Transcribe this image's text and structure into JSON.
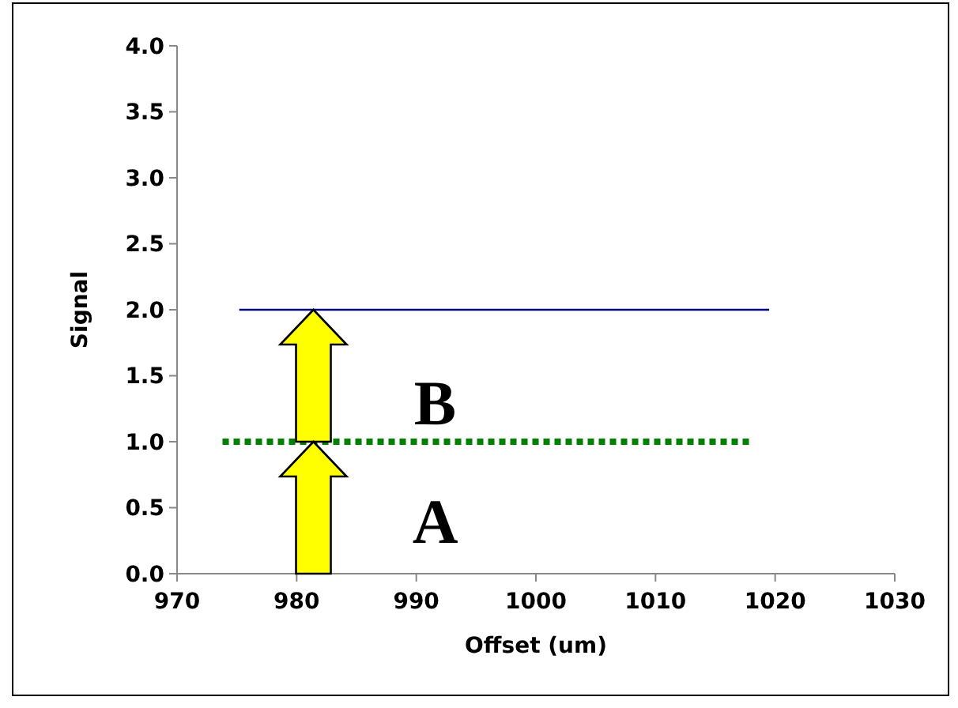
{
  "chart_data": {
    "type": "line",
    "xlabel": "Offset (um)",
    "ylabel": "Signal",
    "xlim": [
      970,
      1030
    ],
    "xticks": [
      970,
      980,
      990,
      1000,
      1010,
      1020,
      1030
    ],
    "ylim": [
      0,
      4
    ],
    "yticks": [
      {
        "value": 0,
        "label": "0.0"
      },
      {
        "value": 0.5,
        "label": "0.5"
      },
      {
        "value": 1,
        "label": "1.0"
      },
      {
        "value": 1.5,
        "label": "1.5"
      },
      {
        "value": 2,
        "label": "2.0"
      },
      {
        "value": 2.5,
        "label": "2.5"
      },
      {
        "value": 3,
        "label": "3.0"
      },
      {
        "value": 3.5,
        "label": "3.5"
      },
      {
        "value": 4,
        "label": "4.0"
      }
    ],
    "grid": false,
    "marker": "none",
    "series": [
      {
        "color": "#008000",
        "line_style": "dotted",
        "x": [
          973.8,
          1018
        ],
        "values": [
          1,
          1
        ]
      },
      {
        "color": "#000080",
        "line_style": "solid",
        "x": [
          975.2,
          1019.5
        ],
        "values": [
          2,
          2
        ]
      }
    ],
    "annotations": [
      "A",
      "B"
    ]
  }
}
